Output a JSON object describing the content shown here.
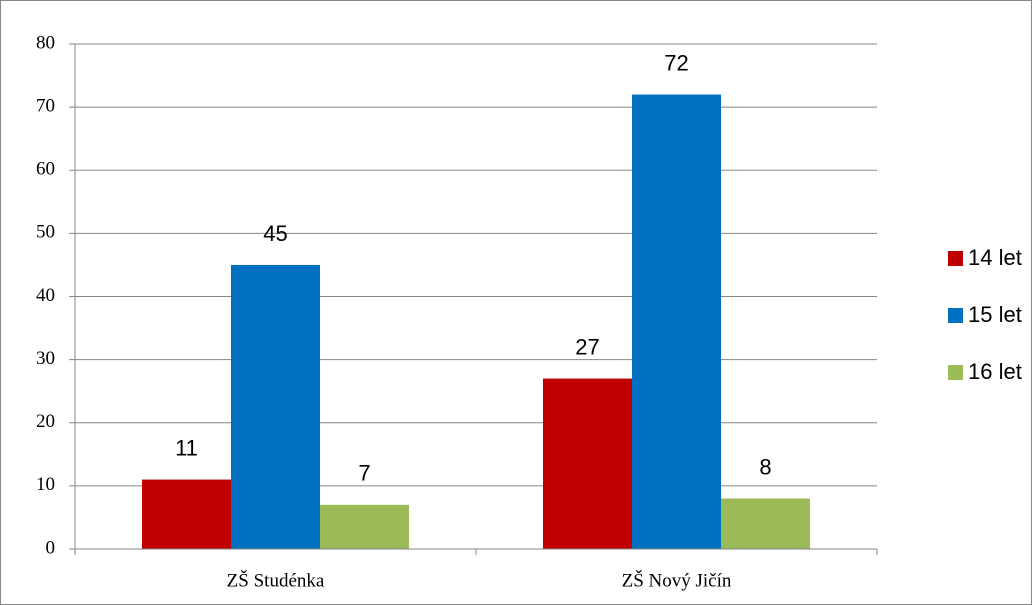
{
  "chart_data": {
    "type": "bar",
    "categories": [
      "ZŠ Studénka",
      "ZŠ Nový Jičín"
    ],
    "series": [
      {
        "name": "14 let",
        "color": "#c00000",
        "values": [
          11,
          27
        ]
      },
      {
        "name": "15 let",
        "color": "#0070c0",
        "values": [
          45,
          72
        ]
      },
      {
        "name": "16 let",
        "color": "#9bbb59",
        "values": [
          7,
          8
        ]
      }
    ],
    "ylim": [
      0,
      80
    ],
    "yticks": [
      0,
      10,
      20,
      30,
      40,
      50,
      60,
      70,
      80
    ],
    "grid": true,
    "legend": "right"
  }
}
